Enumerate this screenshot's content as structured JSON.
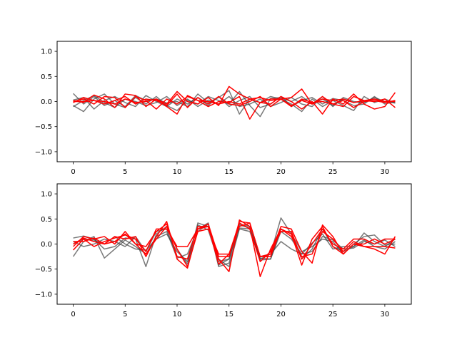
{
  "figure": {
    "background": "#ffffff"
  },
  "colors": {
    "gray_series": "#404040",
    "red_series": "#ff0000",
    "axes": "#000000"
  },
  "chart_data": [
    {
      "type": "line",
      "title": "",
      "xlabel": "",
      "ylabel": "",
      "xlim": [
        -1.55,
        32.55
      ],
      "ylim": [
        -1.2,
        1.2
      ],
      "xticks": [
        0,
        5,
        10,
        15,
        20,
        25,
        30
      ],
      "yticks": [
        -1.0,
        -0.5,
        0.0,
        0.5,
        1.0
      ],
      "xtick_labels": [
        "0",
        "5",
        "10",
        "15",
        "20",
        "25",
        "30"
      ],
      "ytick_labels": [
        "−1.0",
        "−0.5",
        "0.0",
        "0.5",
        "1.0"
      ],
      "grid": false,
      "legend": "none",
      "x": [
        0,
        1,
        2,
        3,
        4,
        5,
        6,
        7,
        8,
        9,
        10,
        11,
        12,
        13,
        14,
        15,
        16,
        17,
        18,
        19,
        20,
        21,
        22,
        23,
        24,
        25,
        26,
        27,
        28,
        29,
        30,
        31
      ],
      "series": [
        {
          "group": "gray",
          "values": [
            0.16,
            -0.05,
            0.1,
            -0.08,
            0.02,
            -0.1,
            0.12,
            0.02,
            0.05,
            -0.03,
            0.0,
            -0.1,
            0.15,
            -0.02,
            0.08,
            0.22,
            -0.25,
            0.05,
            -0.02,
            0.1,
            0.05,
            -0.05,
            -0.2,
            0.05,
            -0.1,
            0.02,
            -0.08,
            -0.18,
            0.1,
            -0.02,
            0.05,
            -0.03
          ]
        },
        {
          "group": "gray",
          "values": [
            -0.08,
            -0.2,
            0.05,
            0.15,
            -0.05,
            -0.12,
            0.08,
            -0.05,
            0.1,
            -0.08,
            -0.18,
            0.03,
            -0.05,
            0.1,
            0.02,
            -0.05,
            0.2,
            -0.08,
            -0.3,
            0.06,
            0.08,
            0.0,
            0.1,
            -0.05,
            0.05,
            -0.08,
            0.05,
            -0.02,
            0.0,
            0.05,
            -0.02,
            0.02
          ]
        },
        {
          "group": "gray",
          "values": [
            0.03,
            0.08,
            -0.15,
            0.02,
            0.1,
            -0.02,
            -0.1,
            0.12,
            0.0,
            -0.1,
            0.05,
            -0.05,
            0.08,
            -0.08,
            0.1,
            -0.1,
            0.02,
            0.1,
            -0.12,
            -0.05,
            0.1,
            -0.1,
            0.02,
            0.08,
            -0.05,
            0.06,
            0.02,
            -0.08,
            -0.05,
            0.1,
            -0.05,
            0.0
          ]
        },
        {
          "group": "gray",
          "values": [
            -0.1,
            0.02,
            0.12,
            -0.02,
            -0.12,
            0.05,
            0.0,
            -0.08,
            -0.02,
            0.1,
            -0.08,
            0.05,
            -0.1,
            0.03,
            -0.05,
            0.1,
            -0.1,
            -0.05,
            0.05,
            -0.1,
            -0.02,
            0.08,
            -0.05,
            -0.1,
            0.1,
            -0.1,
            0.08,
            0.0,
            -0.02,
            0.08,
            0.0,
            -0.03
          ]
        },
        {
          "group": "red",
          "values": [
            0.02,
            -0.02,
            0.13,
            0.05,
            -0.12,
            0.15,
            0.12,
            -0.1,
            0.05,
            -0.05,
            0.2,
            0.0,
            -0.05,
            0.08,
            -0.08,
            0.3,
            0.15,
            0.05,
            0.08,
            0.02,
            0.05,
            0.08,
            0.25,
            -0.05,
            0.05,
            0.02,
            0.05,
            -0.02,
            0.02,
            0.05,
            0.0,
            0.0
          ]
        },
        {
          "group": "red",
          "values": [
            0.0,
            0.05,
            -0.05,
            0.1,
            0.08,
            -0.12,
            0.1,
            0.02,
            -0.15,
            0.05,
            -0.05,
            0.1,
            0.02,
            -0.1,
            0.0,
            -0.02,
            0.1,
            -0.35,
            -0.02,
            -0.05,
            0.1,
            0.0,
            -0.15,
            0.0,
            -0.25,
            0.05,
            -0.05,
            0.15,
            -0.05,
            -0.15,
            -0.1,
            0.18
          ]
        },
        {
          "group": "red",
          "values": [
            -0.02,
            0.08,
            0.02,
            -0.05,
            0.02,
            0.1,
            -0.05,
            0.05,
            0.02,
            -0.08,
            0.15,
            -0.12,
            0.08,
            -0.05,
            0.1,
            -0.05,
            -0.08,
            0.0,
            0.1,
            -0.1,
            0.05,
            -0.1,
            0.05,
            -0.02,
            0.0,
            -0.05,
            -0.1,
            0.1,
            0.02,
            0.0,
            0.05,
            -0.12
          ]
        },
        {
          "group": "red",
          "values": [
            0.0,
            0.0,
            0.02,
            0.0,
            -0.05,
            0.05,
            -0.02,
            0.0,
            0.05,
            -0.1,
            -0.25,
            0.12,
            0.02,
            0.0,
            -0.05,
            0.0,
            -0.05,
            0.05,
            -0.02,
            0.05,
            0.05,
            -0.08,
            0.02,
            -0.05,
            0.1,
            -0.05,
            0.02,
            -0.12,
            0.0,
            0.02,
            -0.02,
            0.02
          ]
        }
      ]
    },
    {
      "type": "line",
      "title": "",
      "xlabel": "",
      "ylabel": "",
      "xlim": [
        -1.55,
        32.55
      ],
      "ylim": [
        -1.2,
        1.2
      ],
      "xticks": [
        0,
        5,
        10,
        15,
        20,
        25,
        30
      ],
      "yticks": [
        -1.0,
        -0.5,
        0.0,
        0.5,
        1.0
      ],
      "xtick_labels": [
        "0",
        "5",
        "10",
        "15",
        "20",
        "25",
        "30"
      ],
      "ytick_labels": [
        "−1.0",
        "−0.5",
        "0.0",
        "0.5",
        "1.0"
      ],
      "grid": false,
      "legend": "none",
      "x": [
        0,
        1,
        2,
        3,
        4,
        5,
        6,
        7,
        8,
        9,
        10,
        11,
        12,
        13,
        14,
        15,
        16,
        17,
        18,
        19,
        20,
        21,
        22,
        23,
        24,
        25,
        26,
        27,
        28,
        29,
        30,
        31
      ],
      "series": [
        {
          "group": "gray",
          "values": [
            0.12,
            0.16,
            0.1,
            -0.1,
            -0.05,
            0.12,
            0.1,
            -0.45,
            0.2,
            0.35,
            -0.1,
            -0.4,
            0.42,
            0.35,
            -0.3,
            -0.45,
            0.3,
            0.25,
            -0.3,
            -0.2,
            0.52,
            0.2,
            -0.3,
            -0.1,
            0.3,
            -0.05,
            -0.15,
            -0.05,
            0.22,
            0.05,
            -0.05,
            0.1
          ]
        },
        {
          "group": "gray",
          "values": [
            -0.25,
            0.05,
            0.15,
            -0.28,
            -0.1,
            0.08,
            -0.05,
            -0.2,
            0.15,
            0.25,
            -0.28,
            -0.2,
            0.3,
            0.42,
            -0.42,
            -0.3,
            0.38,
            0.32,
            -0.25,
            -0.2,
            0.05,
            -0.1,
            -0.2,
            0.02,
            0.2,
            -0.1,
            -0.05,
            -0.05,
            0.08,
            -0.05,
            -0.1,
            0.05
          ]
        },
        {
          "group": "gray",
          "values": [
            0.05,
            -0.05,
            0.0,
            0.1,
            0.05,
            -0.05,
            0.15,
            -0.15,
            0.25,
            0.3,
            -0.25,
            -0.3,
            0.38,
            0.28,
            -0.35,
            -0.3,
            0.4,
            0.35,
            -0.32,
            -0.3,
            0.3,
            0.2,
            -0.15,
            -0.05,
            0.1,
            0.05,
            -0.2,
            0.0,
            0.15,
            0.18,
            -0.02,
            0.0
          ]
        },
        {
          "group": "gray",
          "values": [
            0.0,
            0.1,
            0.08,
            0.0,
            0.15,
            0.0,
            -0.1,
            -0.12,
            0.1,
            0.2,
            -0.15,
            -0.35,
            0.25,
            0.4,
            -0.45,
            -0.38,
            0.32,
            0.3,
            -0.28,
            -0.3,
            0.25,
            0.1,
            -0.2,
            -0.15,
            0.15,
            0.08,
            -0.1,
            -0.08,
            0.05,
            0.0,
            0.08,
            -0.05
          ]
        },
        {
          "group": "red",
          "values": [
            0.05,
            0.05,
            0.12,
            0.0,
            0.15,
            0.1,
            0.15,
            -0.25,
            0.15,
            0.45,
            -0.3,
            -0.48,
            0.3,
            0.35,
            -0.3,
            -0.55,
            0.48,
            0.35,
            -0.65,
            -0.1,
            0.3,
            0.2,
            -0.42,
            0.1,
            0.35,
            -0.05,
            -0.2,
            0.0,
            0.0,
            0.1,
            0.0,
            0.1
          ]
        },
        {
          "group": "red",
          "values": [
            -0.05,
            0.15,
            0.1,
            0.15,
            0.0,
            0.25,
            0.0,
            -0.05,
            0.25,
            0.4,
            -0.25,
            -0.3,
            0.35,
            0.35,
            -0.4,
            -0.2,
            0.42,
            0.3,
            -0.35,
            -0.15,
            0.25,
            0.25,
            -0.3,
            0.0,
            0.3,
            0.0,
            -0.1,
            0.1,
            0.1,
            0.0,
            0.1,
            0.1
          ]
        },
        {
          "group": "red",
          "values": [
            -0.12,
            0.1,
            -0.05,
            0.05,
            0.12,
            0.18,
            0.1,
            -0.15,
            0.3,
            0.3,
            -0.05,
            -0.05,
            0.3,
            0.4,
            -0.25,
            -0.25,
            0.45,
            0.42,
            -0.25,
            -0.2,
            0.35,
            0.3,
            -0.15,
            -0.38,
            0.38,
            0.15,
            -0.2,
            0.0,
            -0.05,
            -0.05,
            -0.05,
            -0.08
          ]
        },
        {
          "group": "red",
          "values": [
            0.0,
            0.12,
            0.05,
            0.0,
            0.05,
            0.2,
            0.0,
            -0.2,
            0.1,
            0.35,
            -0.1,
            -0.45,
            0.25,
            0.3,
            -0.2,
            -0.2,
            0.35,
            0.42,
            -0.25,
            -0.25,
            0.3,
            0.15,
            -0.25,
            -0.2,
            0.25,
            0.1,
            -0.15,
            0.05,
            -0.05,
            -0.1,
            -0.2,
            0.15
          ]
        }
      ]
    }
  ]
}
